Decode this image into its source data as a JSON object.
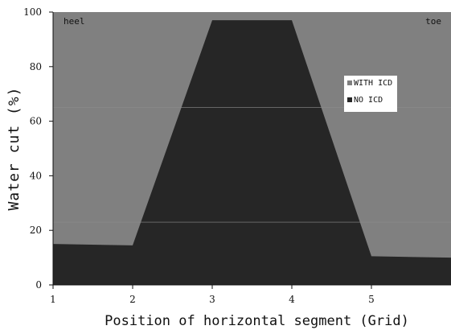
{
  "chart_data": {
    "type": "area",
    "title": "",
    "xlabel": "Position of horizontal segment (Grid)",
    "ylabel": "Water cut (%)",
    "xlim": [
      1,
      6
    ],
    "ylim": [
      0,
      100
    ],
    "xticks": [
      1,
      2,
      3,
      4,
      5
    ],
    "yticks": [
      0,
      20,
      40,
      60,
      80,
      100
    ],
    "grid": false,
    "legend_position": "upper-right",
    "annotations": {
      "left": "heel",
      "right": "toe"
    },
    "series": [
      {
        "name": "WITH ICD",
        "color": "#808080",
        "x": [
          1,
          6
        ],
        "values": [
          100,
          100
        ]
      },
      {
        "name": "NO ICD",
        "color": "#262626",
        "x": [
          1,
          2,
          3,
          4,
          5,
          6
        ],
        "values": [
          15,
          14.5,
          97,
          97,
          10.5,
          10
        ]
      }
    ]
  }
}
